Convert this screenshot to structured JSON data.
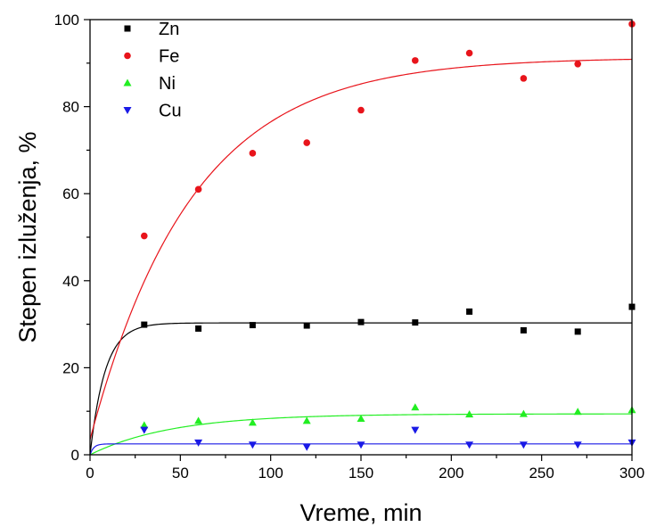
{
  "chart_data": {
    "type": "scatter",
    "xlabel": "Vreme, min",
    "ylabel": "Stepen izluženja, %",
    "xlim": [
      0,
      300
    ],
    "ylim": [
      0,
      100
    ],
    "xticks": [
      0,
      50,
      100,
      150,
      200,
      250,
      300
    ],
    "yticks": [
      0,
      20,
      40,
      60,
      80,
      100
    ],
    "grid": false,
    "legend_position": "top-left",
    "series": [
      {
        "name": "Zn",
        "color": "#000000",
        "marker": "square",
        "x": [
          30,
          60,
          90,
          120,
          150,
          180,
          210,
          240,
          270,
          300
        ],
        "y": [
          29.9,
          29.0,
          29.8,
          29.7,
          30.5,
          30.4,
          32.9,
          28.6,
          28.3,
          34.0
        ],
        "fit": {
          "model": "first-order",
          "plateau": 30.3,
          "k": 0.12
        }
      },
      {
        "name": "Fe",
        "color": "#e8141b",
        "marker": "circle",
        "x": [
          30,
          60,
          90,
          120,
          150,
          180,
          210,
          240,
          270,
          300
        ],
        "y": [
          50.3,
          61.0,
          69.3,
          71.7,
          79.2,
          90.6,
          92.3,
          86.5,
          89.8,
          99.0
        ],
        "fit": {
          "model": "first-order",
          "plateau": 91.3,
          "k": 0.0178,
          "y0": 3.5
        }
      },
      {
        "name": "Ni",
        "color": "#22ee22",
        "marker": "triangle-up",
        "x": [
          30,
          60,
          90,
          120,
          150,
          180,
          210,
          240,
          270,
          300
        ],
        "y": [
          6.8,
          7.8,
          7.4,
          7.8,
          8.3,
          10.9,
          9.3,
          9.4,
          9.9,
          10.3
        ],
        "fit": {
          "model": "first-order",
          "plateau": 9.4,
          "k": 0.022
        }
      },
      {
        "name": "Cu",
        "color": "#1a1ae6",
        "marker": "triangle-down",
        "x": [
          30,
          60,
          90,
          120,
          150,
          180,
          210,
          240,
          270,
          300
        ],
        "y": [
          5.7,
          2.8,
          2.3,
          1.8,
          2.3,
          5.7,
          2.3,
          2.3,
          2.3,
          2.8
        ],
        "fit": {
          "model": "first-order",
          "plateau": 2.5,
          "k": 0.5
        }
      }
    ]
  }
}
